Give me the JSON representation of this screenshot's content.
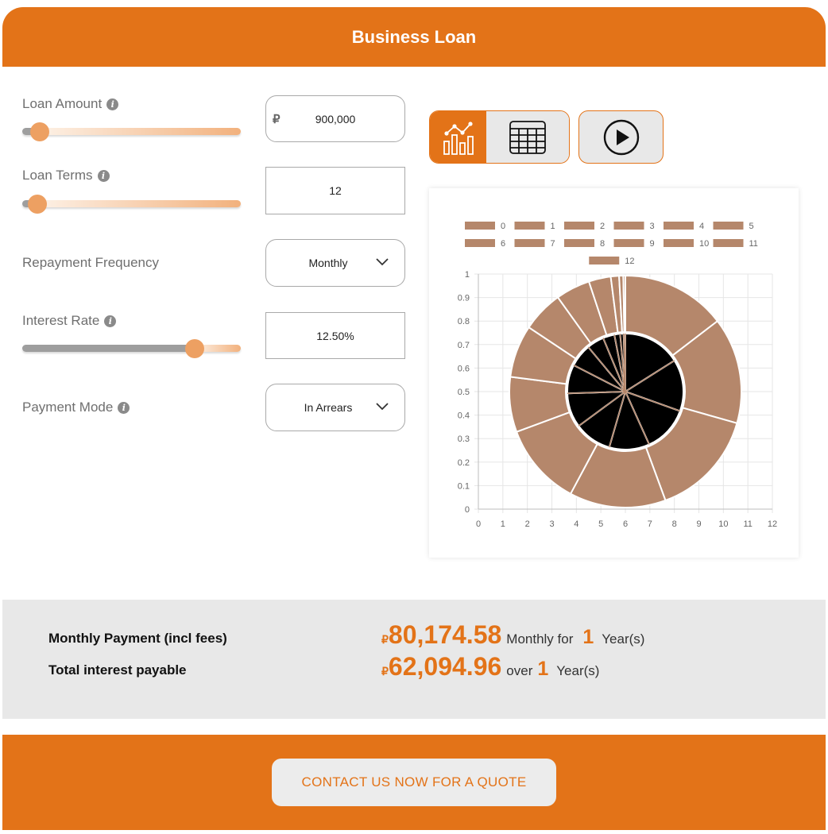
{
  "header": {
    "title": "Business Loan"
  },
  "form": {
    "loan_amount": {
      "label": "Loan Amount",
      "currency": "₽",
      "value": "900,000",
      "slider_fraction": 0.08
    },
    "loan_terms": {
      "label": "Loan Terms",
      "value": "12",
      "slider_fraction": 0.07
    },
    "repayment_frequency": {
      "label": "Repayment Frequency",
      "value": "Monthly"
    },
    "interest_rate": {
      "label": "Interest Rate",
      "value": "12.50%",
      "slider_fraction": 0.79
    },
    "payment_mode": {
      "label": "Payment Mode",
      "value": "In Arrears"
    }
  },
  "view_toggle": {
    "active": "chart",
    "icons": [
      "chart-icon",
      "table-icon",
      "play-icon"
    ]
  },
  "colors": {
    "accent": "#e37318",
    "slice": "#b5876b",
    "inner": "#000000"
  },
  "chart_data": {
    "type": "pie",
    "legend": [
      "0",
      "1",
      "2",
      "3",
      "4",
      "5",
      "6",
      "7",
      "8",
      "9",
      "10",
      "11",
      "12"
    ],
    "legend_position": "top",
    "x_ticks": [
      "0",
      "1",
      "2",
      "3",
      "4",
      "5",
      "6",
      "7",
      "8",
      "9",
      "10",
      "11",
      "12"
    ],
    "y_ticks": [
      "0",
      "0.1",
      "0.2",
      "0.3",
      "0.4",
      "0.5",
      "0.6",
      "0.7",
      "0.8",
      "0.9",
      "1"
    ],
    "xlim": [
      0,
      12
    ],
    "ylim": [
      0,
      1
    ],
    "grid": true,
    "outer_values": [
      76000,
      77000,
      78000,
      70000,
      60000,
      40000,
      38000,
      30000,
      25000,
      16000,
      6000,
      3000,
      1500
    ],
    "inner_values": [
      10000,
      9000,
      8000,
      7000,
      6500,
      6000,
      5000,
      4000,
      3000,
      2000,
      1000,
      600,
      300
    ]
  },
  "summary": {
    "monthly_label": "Monthly Payment (incl fees)",
    "monthly_currency": "₽",
    "monthly_value": "80,174.58",
    "monthly_for": "Monthly for",
    "years": "1",
    "years_unit": "Year(s)",
    "interest_label": "Total interest payable",
    "interest_currency": "₽",
    "interest_value": "62,094.96",
    "over": "over"
  },
  "footer": {
    "cta_label": "CONTACT US NOW FOR A QUOTE"
  }
}
